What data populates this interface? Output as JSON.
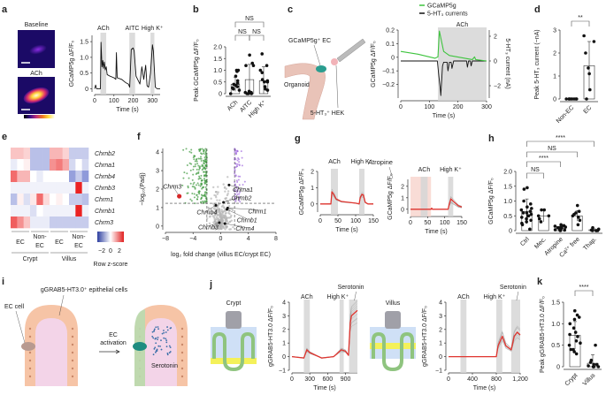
{
  "panels": {
    "a": "a",
    "b": "b",
    "c": "c",
    "d": "d",
    "e": "e",
    "f": "f",
    "g": "g",
    "h": "h",
    "i": "i",
    "j": "j",
    "k": "k"
  },
  "a": {
    "img1_label": "Baseline",
    "img2_label": "ACh"
  },
  "c": {
    "cell_label": "GCaMP5g⁺ EC",
    "organoid_label": "Organoid",
    "hek_label": "5-HT₃⁺ HEK",
    "legend": [
      "GCaMP5g",
      "5-HT₃ currents"
    ]
  },
  "i": {
    "cells_label": "gGRAB5-HT3.0⁺ epithelial cells",
    "ec_cell_label": "EC cell",
    "arrow_label_1": "EC",
    "arrow_label_2": "activation",
    "serotonin_label": "Serotonin"
  },
  "j": {
    "crypt_label": "Crypt",
    "villus_label": "Villus"
  },
  "colors": {
    "gcamp": "#3ec43e",
    "current": "#111111",
    "mean_trace": "#e0352f",
    "shade": "#d6d6d6",
    "atropine": "#f7d3cc",
    "down": "#3f9a3f",
    "up": "#a46de0",
    "highlight": "#d62828"
  },
  "chart_data": [
    {
      "id": "a",
      "type": "line",
      "xlabel": "Time (s)",
      "ylabel": "GCaMP5g ΔF/F₀",
      "xlim": [
        0,
        340
      ],
      "ylim": [
        -0.1,
        1.7
      ],
      "xticks": [
        "0",
        "100",
        "200",
        "300"
      ],
      "yticks": [
        "0",
        "0.5",
        "1.0",
        "1.5"
      ],
      "shades": [
        {
          "label": "ACh",
          "x": [
            30,
            60
          ]
        },
        {
          "label": "AITC",
          "x": [
            180,
            210
          ]
        },
        {
          "label": "High K⁺",
          "x": [
            290,
            310
          ]
        }
      ],
      "series": [
        {
          "x": [
            0,
            5,
            10,
            30,
            33,
            38,
            42,
            46,
            50,
            55,
            60,
            65,
            80,
            100,
            110,
            113,
            117,
            140,
            160,
            175,
            182,
            190,
            200,
            205,
            215,
            235,
            245,
            255,
            265,
            272,
            280,
            290,
            300,
            305,
            315,
            325,
            340
          ],
          "y": [
            0,
            0.12,
            0,
            0,
            1.48,
            0.7,
            0.9,
            0.65,
            0.85,
            0.6,
            0.7,
            0.45,
            0.4,
            0.35,
            0.3,
            1.15,
            0.35,
            0.3,
            0.2,
            0.15,
            0.05,
            1.25,
            1.3,
            1.2,
            0.4,
            0.15,
            0.7,
            0.3,
            0.75,
            0.1,
            0.05,
            0.5,
            1.4,
            1.2,
            0.05,
            0,
            0
          ]
        }
      ]
    },
    {
      "id": "b",
      "type": "bar",
      "ylabel": "Peak GCaMP5g ΔF/F₀",
      "ylim": [
        0,
        2.0
      ],
      "yticks": [
        "0",
        "0.5",
        "1.0",
        "1.5",
        "2.0"
      ],
      "categories": [
        "ACh",
        "AITC",
        "High K⁺"
      ],
      "values": [
        0.4,
        0.6,
        0.55
      ],
      "points": [
        [
          0,
          0.15,
          0.2,
          0.25,
          0.3,
          0.35,
          0.4,
          0.45,
          0.55,
          0.75,
          0.95,
          1.0,
          1.0
        ],
        [
          0,
          0,
          0,
          0.02,
          0.05,
          0.05,
          0.1,
          1.2,
          1.3,
          1.2,
          1.65
        ],
        [
          0.15,
          0.2,
          0.3,
          0.5,
          0.5,
          0.55,
          0.6,
          0.9,
          1.2,
          1.7,
          1.0
        ]
      ],
      "errors": [
        0.3,
        0.65,
        0.6
      ],
      "comparisons": [
        {
          "pair": [
            0,
            1
          ],
          "label": "NS"
        },
        {
          "pair": [
            1,
            2
          ],
          "label": "NS"
        },
        {
          "pair": [
            0,
            2
          ],
          "label": "NS"
        }
      ]
    },
    {
      "id": "c",
      "type": "line",
      "xlabel": "Time (s)",
      "ylabel": "GCaMP5g ΔF/F₀",
      "ylabel_right": "5-HT₃ current (nA)",
      "xlim": [
        0,
        300
      ],
      "ylim": [
        -0.3,
        0.2
      ],
      "ylim_right": [
        -3,
        2.5
      ],
      "xticks": [
        "0",
        "100",
        "200",
        "300"
      ],
      "yticks": [
        "−0.2",
        "−0.1",
        "0",
        "0.1",
        "0.2"
      ],
      "yticks_right": [
        "−2",
        "0",
        "2"
      ],
      "shades": [
        {
          "label": "ACh",
          "x": [
            130,
            300
          ]
        }
      ],
      "series": [
        {
          "name": "GCaMP5g",
          "x": [
            0,
            60,
            120,
            130,
            135,
            140,
            150,
            170,
            250,
            258,
            262,
            300
          ],
          "y": [
            0.02,
            0.0,
            -0.03,
            -0.02,
            0.17,
            0.12,
            0.02,
            -0.01,
            -0.04,
            -0.02,
            -0.04,
            -0.05
          ]
        },
        {
          "name": "5-HT₃ currents",
          "x": [
            0,
            128,
            133,
            138,
            140,
            143,
            146,
            150,
            162,
            165,
            170,
            176,
            179,
            185,
            230,
            233,
            237,
            243,
            246,
            250,
            300
          ],
          "y": [
            0,
            0,
            -1.2,
            -2.2,
            -2.8,
            -1.6,
            -0.4,
            -0.1,
            -0.1,
            -0.8,
            -0.1,
            -0.1,
            -0.6,
            0,
            0,
            -0.5,
            0,
            0,
            -0.4,
            0,
            0
          ]
        }
      ]
    },
    {
      "id": "d",
      "type": "bar",
      "ylabel": "Peak 5-HT₃ current (−nA)",
      "ylim": [
        0,
        3
      ],
      "yticks": [
        "0",
        "1",
        "2",
        "3"
      ],
      "categories": [
        "Non-EC",
        "EC"
      ],
      "values": [
        0,
        1.45
      ],
      "errors": [
        0,
        1.05
      ],
      "points": [
        [
          0,
          0,
          0,
          0,
          0,
          0,
          0,
          0
        ],
        [
          0,
          0.4,
          1.1,
          1.35,
          2.0,
          2.5,
          2.75
        ]
      ],
      "comparisons": [
        {
          "pair": [
            0,
            1
          ],
          "label": "**"
        }
      ]
    },
    {
      "id": "e",
      "type": "heatmap",
      "rows": [
        "Chrnb2",
        "Chrna1",
        "Chrnb4",
        "Chrnb3",
        "Chrm1",
        "Chrnb1",
        "Chrm3"
      ],
      "column_groups": [
        {
          "cell": "EC",
          "region": "Crypt"
        },
        {
          "cell": "Non-EC",
          "region": "Crypt"
        },
        {
          "cell": "EC",
          "region": "Villus"
        },
        {
          "cell": "Non-EC",
          "region": "Villus"
        }
      ],
      "regions": [
        "Crypt",
        "Villus"
      ],
      "group_labels": [
        "EC",
        "Non-",
        "EC",
        "EC",
        "Non-",
        "EC"
      ],
      "colorbar_label": "Row z-score",
      "colorbar_ticks": [
        "−2",
        "0",
        "2"
      ],
      "zlim": [
        -3,
        3
      ],
      "values": [
        [
          0.8,
          0.8,
          0.6,
          -1,
          -1,
          -1,
          1,
          1,
          0.6,
          -0.8,
          -0.8,
          -0.8
        ],
        [
          -0.3,
          0,
          0.2,
          -1,
          -1,
          -1,
          1.5,
          1.8,
          1.2,
          -0.6,
          0,
          -0.6
        ],
        [
          2,
          1,
          1,
          0,
          -0.3,
          0,
          0,
          0,
          0,
          -1.5,
          -0.8,
          -1.6
        ],
        [
          -0.2,
          -0.2,
          -0.2,
          -0.2,
          -0.2,
          -0.2,
          -0.2,
          -0.2,
          -0.2,
          -0.2,
          3,
          -0.2
        ],
        [
          -1,
          0.2,
          -0.5,
          0.3,
          2,
          0.5,
          0,
          0.2,
          0,
          -0.8,
          -0.8,
          -1
        ],
        [
          -0.2,
          -0.2,
          -0.2,
          -0.5,
          0,
          -0.2,
          -0.2,
          -0.2,
          -0.2,
          -0.2,
          3,
          -0.2
        ],
        [
          2.2,
          1.5,
          0.8,
          -0.3,
          -0.3,
          -0.3,
          -0.8,
          -0.8,
          -0.8,
          -0.8,
          -0.8,
          -0.8
        ]
      ]
    },
    {
      "id": "f",
      "type": "scatter",
      "xlabel": "log₂ fold change (villus EC/crypt EC)",
      "ylabel": "−log₁₀(Padj)",
      "xlim": [
        -8.5,
        8.5
      ],
      "ylim": [
        -0.2,
        4.2
      ],
      "xticks": [
        "−8",
        "−4",
        "0",
        "4",
        "8"
      ],
      "yticks": [
        "0",
        "1",
        "2",
        "3",
        "4"
      ],
      "thresholds": {
        "x": [
          -2,
          2
        ],
        "y": 1.3
      },
      "labeled_genes": [
        {
          "name": "Chrm3",
          "x": -6,
          "y": 1.65,
          "highlight": true
        },
        {
          "name": "Chrna1",
          "x": 1.2,
          "y": 2.2
        },
        {
          "name": "Chrnb2",
          "x": 0.4,
          "y": 1.35
        },
        {
          "name": "Chrnb4",
          "x": -0.7,
          "y": 1.2
        },
        {
          "name": "Chrm1",
          "x": 1.0,
          "y": 1.07
        },
        {
          "name": "Chrnb1",
          "x": 0.9,
          "y": 1.0
        },
        {
          "name": "Chrnb3",
          "x": -0.2,
          "y": 0.35
        },
        {
          "name": "Chrm4",
          "x": 0.6,
          "y": 0.3
        }
      ]
    },
    {
      "id": "g1",
      "type": "line",
      "xlabel": "Time (s)",
      "ylabel": "GCaMP5g ΔF/F₀",
      "xlim": [
        0,
        150
      ],
      "ylim": [
        -0.5,
        2
      ],
      "xticks": [
        "0",
        "50",
        "100",
        "150"
      ],
      "yticks": [
        "0",
        "1",
        "2"
      ],
      "shades": [
        {
          "label": "ACh",
          "x": [
            30,
            50
          ]
        },
        {
          "label": "High K⁺",
          "x": [
            110,
            125
          ]
        }
      ],
      "series": [
        {
          "x": [
            0,
            30,
            33,
            38,
            45,
            60,
            100,
            110,
            113,
            118,
            122,
            127,
            135,
            150
          ],
          "y": [
            0,
            0,
            0.75,
            0.6,
            0.3,
            0.15,
            0.05,
            0,
            0.4,
            0.6,
            0.55,
            0.1,
            0,
            0
          ]
        }
      ]
    },
    {
      "id": "g2",
      "type": "line",
      "xlabel": "Time (s)",
      "ylabel": "GCaMP5g ΔF/F₀",
      "xlim": [
        0,
        150
      ],
      "ylim": [
        -0.4,
        2.6
      ],
      "xticks": [
        "0",
        "50",
        "100",
        "150"
      ],
      "yticks": [
        "0",
        "1",
        "2"
      ],
      "shades": [
        {
          "label": "Atropine",
          "x": [
            0,
            60
          ],
          "tint": "atropine"
        },
        {
          "label": "ACh",
          "x": [
            30,
            50
          ]
        },
        {
          "label": "High K⁺",
          "x": [
            110,
            125
          ]
        }
      ],
      "series": [
        {
          "x": [
            0,
            60,
            62,
            64,
            110,
            113,
            118,
            125,
            140,
            150
          ],
          "y": [
            0,
            0,
            0.1,
            0,
            0,
            0.4,
            0.9,
            0.7,
            0.3,
            0.2
          ]
        }
      ]
    },
    {
      "id": "h",
      "type": "bar",
      "ylabel": "GCaMP5g ΔF/F₀",
      "ylim": [
        0,
        2.0
      ],
      "yticks": [
        "0",
        "0.5",
        "1.0",
        "1.5",
        "2.0"
      ],
      "categories": [
        "Ctrl",
        "Mec.",
        "Atropine",
        "Ca²⁺ free",
        "Thap."
      ],
      "values": [
        0.65,
        0.5,
        0.07,
        0.5,
        0.03
      ],
      "errors": [
        0.42,
        0.2,
        0.07,
        0.18,
        0.03
      ],
      "points": [
        [
          0.05,
          0.2,
          0.3,
          0.35,
          0.4,
          0.45,
          0.5,
          0.55,
          0.6,
          0.6,
          0.65,
          0.7,
          0.75,
          0.8,
          0.9,
          1.0,
          1.4,
          1.45,
          0.25,
          0.5
        ],
        [
          0.3,
          0.4,
          0.5,
          0.5,
          0.7,
          0.7
        ],
        [
          0,
          0.02,
          0.03,
          0.05,
          0.05,
          0.07,
          0.08,
          0.1,
          0.1,
          0.12,
          0.15,
          0.15,
          0.17,
          0.2,
          0.02
        ],
        [
          0.2,
          0.35,
          0.45,
          0.5,
          0.55,
          0.6,
          0.65,
          0.85
        ],
        [
          0,
          0,
          0,
          0,
          0.02,
          0.05,
          0.1
        ]
      ],
      "comparisons": [
        {
          "pair": [
            0,
            1
          ],
          "label": "NS"
        },
        {
          "pair": [
            0,
            2
          ],
          "label": "****"
        },
        {
          "pair": [
            0,
            3
          ],
          "label": "NS"
        },
        {
          "pair": [
            0,
            4
          ],
          "label": "****"
        }
      ]
    },
    {
      "id": "j1",
      "type": "line",
      "xlabel": "Time (s)",
      "ylabel": "gGRAB5-HT3.0 ΔF/F₀",
      "xlim": [
        0,
        1100
      ],
      "ylim": [
        -1,
        4
      ],
      "xticks": [
        "0",
        "300",
        "600",
        "900"
      ],
      "yticks": [
        "−1",
        "0",
        "1",
        "2",
        "3",
        "4"
      ],
      "shades": [
        {
          "label": "ACh",
          "x": [
            200,
            300
          ]
        },
        {
          "label": "High K⁺",
          "x": [
            800,
            870
          ]
        },
        {
          "label": "Serotonin",
          "x": [
            960,
            1100
          ]
        }
      ],
      "series": [
        {
          "x": [
            0,
            200,
            250,
            300,
            500,
            700,
            830,
            900,
            950,
            980,
            1000,
            1100
          ],
          "y": [
            0,
            -0.1,
            0.5,
            0.3,
            -0.1,
            0,
            0.5,
            0.4,
            0.1,
            2.5,
            3.0,
            3.4
          ]
        }
      ]
    },
    {
      "id": "j2",
      "type": "line",
      "xlabel": "Time (s)",
      "ylabel": "gGRAB5-HT3.0 ΔF/F₀",
      "xlim": [
        0,
        1200
      ],
      "ylim": [
        -1,
        4
      ],
      "xticks": [
        "0",
        "400",
        "800",
        "1,200"
      ],
      "yticks": [
        "−1",
        "0",
        "1",
        "2",
        "3",
        "4"
      ],
      "shades": [
        {
          "label": "ACh",
          "x": [
            200,
            300
          ]
        },
        {
          "label": "High K⁺",
          "x": [
            800,
            900
          ]
        },
        {
          "label": "Serotonin",
          "x": [
            1050,
            1200
          ]
        }
      ],
      "series": [
        {
          "x": [
            0,
            800,
            830,
            900,
            960,
            1050,
            1100,
            1150,
            1200
          ],
          "y": [
            0,
            0,
            0.8,
            1.5,
            0.8,
            0.5,
            1.5,
            1.8,
            1.6
          ]
        }
      ]
    },
    {
      "id": "k",
      "type": "bar",
      "ylabel": "Peak gGRAB5-HT3.0 ΔF/F₀",
      "ylim": [
        0,
        1.5
      ],
      "yticks": [
        "0",
        "0.5",
        "1.0",
        "1.5"
      ],
      "categories": [
        "Crypt",
        "Villus"
      ],
      "values": [
        0.73,
        0.08
      ],
      "errors": [
        0.32,
        0.2
      ],
      "points": [
        [
          0.3,
          0.35,
          0.4,
          0.5,
          0.55,
          0.6,
          0.7,
          0.8,
          0.9,
          1.0,
          1.1,
          1.15,
          1.2,
          1.3,
          0.75,
          0.4
        ],
        [
          0,
          0,
          0,
          0.02,
          0.05,
          0.1,
          0.15,
          0.5,
          0.05,
          0
        ]
      ],
      "comparisons": [
        {
          "pair": [
            0,
            1
          ],
          "label": "****"
        }
      ]
    }
  ]
}
